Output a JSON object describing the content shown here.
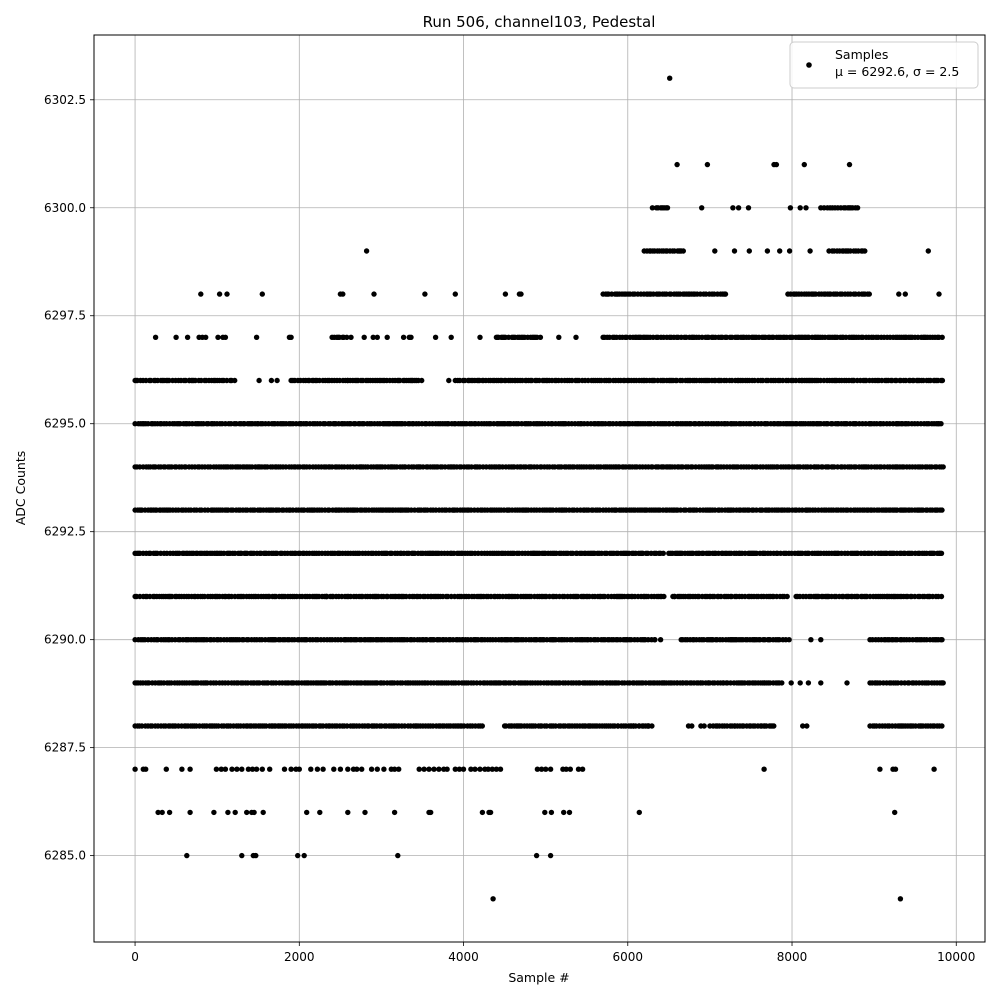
{
  "chart_data": {
    "type": "scatter",
    "title": "Run 506, channel103, Pedestal",
    "xlabel": "Sample #",
    "ylabel": "ADC Counts",
    "xlim": [
      -500,
      10350
    ],
    "ylim": [
      6283.0,
      6304.0
    ],
    "x_ticks": [
      0,
      2000,
      4000,
      6000,
      8000,
      10000
    ],
    "y_ticks": [
      6285.0,
      6287.5,
      6290.0,
      6292.5,
      6295.0,
      6297.5,
      6300.0,
      6302.5
    ],
    "x_tick_labels": [
      "0",
      "2000",
      "4000",
      "6000",
      "8000",
      "10000"
    ],
    "y_tick_labels": [
      "6285.0",
      "6287.5",
      "6290.0",
      "6292.5",
      "6295.0",
      "6297.5",
      "6300.0",
      "6302.5"
    ],
    "grid": true,
    "legend": {
      "placement": "top-right",
      "series_name": "Samples",
      "stats_text": "μ = 6292.6, σ = 2.5"
    },
    "marker_color": "#000000",
    "sample_count_approx": 9850,
    "dense_bands": [
      {
        "y": 6288,
        "ranges": [
          [
            0,
            4250
          ],
          [
            4500,
            6300
          ],
          [
            7000,
            7800
          ],
          [
            8950,
            9850
          ]
        ]
      },
      {
        "y": 6289,
        "ranges": [
          [
            0,
            4400
          ],
          [
            4400,
            6500
          ],
          [
            6500,
            7900
          ],
          [
            8950,
            9850
          ]
        ]
      },
      {
        "y": 6290,
        "ranges": [
          [
            0,
            6350
          ],
          [
            6650,
            8000
          ],
          [
            8950,
            9850
          ]
        ]
      },
      {
        "y": 6291,
        "ranges": [
          [
            0,
            6450
          ],
          [
            6550,
            7950
          ],
          [
            8050,
            9850
          ]
        ]
      },
      {
        "y": 6292,
        "ranges": [
          [
            0,
            6450
          ],
          [
            6500,
            9850
          ]
        ]
      },
      {
        "y": 6293,
        "ranges": [
          [
            0,
            9850
          ]
        ]
      },
      {
        "y": 6294,
        "ranges": [
          [
            0,
            9850
          ]
        ]
      },
      {
        "y": 6295,
        "ranges": [
          [
            0,
            9850
          ]
        ]
      },
      {
        "y": 6296,
        "ranges": [
          [
            0,
            1250
          ],
          [
            1900,
            3500
          ],
          [
            3900,
            9850
          ]
        ]
      },
      {
        "y": 6297,
        "ranges": [
          [
            2400,
            2600
          ],
          [
            4400,
            4950
          ],
          [
            5700,
            9850
          ]
        ]
      },
      {
        "y": 6298,
        "ranges": [
          [
            5700,
            7200
          ],
          [
            7950,
            8950
          ]
        ]
      },
      {
        "y": 6299,
        "ranges": [
          [
            6200,
            6700
          ],
          [
            8450,
            8900
          ]
        ]
      },
      {
        "y": 6300,
        "ranges": [
          [
            6350,
            6500
          ],
          [
            8350,
            8800
          ]
        ]
      }
    ],
    "sparse_points": [
      [
        6510,
        6303
      ],
      [
        6600,
        6301
      ],
      [
        6970,
        6301
      ],
      [
        7780,
        6301
      ],
      [
        7810,
        6301
      ],
      [
        8150,
        6301
      ],
      [
        8700,
        6301
      ],
      [
        6300,
        6300
      ],
      [
        6900,
        6300
      ],
      [
        7280,
        6300
      ],
      [
        7350,
        6300
      ],
      [
        7470,
        6300
      ],
      [
        7980,
        6300
      ],
      [
        8100,
        6300
      ],
      [
        8170,
        6300
      ],
      [
        2820,
        6299
      ],
      [
        7060,
        6299
      ],
      [
        7300,
        6299
      ],
      [
        7480,
        6299
      ],
      [
        7700,
        6299
      ],
      [
        7850,
        6299
      ],
      [
        7970,
        6299
      ],
      [
        8220,
        6299
      ],
      [
        9660,
        6299
      ],
      [
        800,
        6298
      ],
      [
        1030,
        6298
      ],
      [
        1120,
        6298
      ],
      [
        1550,
        6298
      ],
      [
        2500,
        6298
      ],
      [
        2530,
        6298
      ],
      [
        2910,
        6298
      ],
      [
        3530,
        6298
      ],
      [
        3900,
        6298
      ],
      [
        4510,
        6298
      ],
      [
        4680,
        6298
      ],
      [
        4700,
        6298
      ],
      [
        9300,
        6298
      ],
      [
        9380,
        6298
      ],
      [
        9790,
        6298
      ],
      [
        250,
        6297
      ],
      [
        500,
        6297
      ],
      [
        640,
        6297
      ],
      [
        780,
        6297
      ],
      [
        820,
        6297
      ],
      [
        860,
        6297
      ],
      [
        1010,
        6297
      ],
      [
        1070,
        6297
      ],
      [
        1100,
        6297
      ],
      [
        1480,
        6297
      ],
      [
        1880,
        6297
      ],
      [
        1900,
        6297
      ],
      [
        2630,
        6297
      ],
      [
        2790,
        6297
      ],
      [
        2900,
        6297
      ],
      [
        2950,
        6297
      ],
      [
        3070,
        6297
      ],
      [
        3270,
        6297
      ],
      [
        3340,
        6297
      ],
      [
        3360,
        6297
      ],
      [
        3660,
        6297
      ],
      [
        3850,
        6297
      ],
      [
        4200,
        6297
      ],
      [
        5160,
        6297
      ],
      [
        5370,
        6297
      ],
      [
        660,
        6296
      ],
      [
        700,
        6296
      ],
      [
        1510,
        6296
      ],
      [
        1660,
        6296
      ],
      [
        1730,
        6296
      ],
      [
        2590,
        6296
      ],
      [
        3820,
        6296
      ],
      [
        1500,
        6295
      ],
      [
        1690,
        6295
      ],
      [
        1790,
        6295
      ],
      [
        2020,
        6295
      ],
      [
        2330,
        6291
      ],
      [
        6570,
        6291
      ],
      [
        6330,
        6290
      ],
      [
        6400,
        6290
      ],
      [
        8230,
        6290
      ],
      [
        8350,
        6290
      ],
      [
        6440,
        6289
      ],
      [
        6600,
        6289
      ],
      [
        6670,
        6289
      ],
      [
        6890,
        6289
      ],
      [
        6980,
        6289
      ],
      [
        7160,
        6289
      ],
      [
        7660,
        6289
      ],
      [
        7990,
        6289
      ],
      [
        8100,
        6289
      ],
      [
        8200,
        6289
      ],
      [
        8350,
        6289
      ],
      [
        8670,
        6289
      ],
      [
        9830,
        6289
      ],
      [
        5880,
        6288
      ],
      [
        6070,
        6288
      ],
      [
        6140,
        6288
      ],
      [
        6250,
        6288
      ],
      [
        6740,
        6288
      ],
      [
        6780,
        6288
      ],
      [
        6890,
        6288
      ],
      [
        6930,
        6288
      ],
      [
        7090,
        6288
      ],
      [
        7300,
        6288
      ],
      [
        7630,
        6288
      ],
      [
        7670,
        6288
      ],
      [
        8130,
        6288
      ],
      [
        8180,
        6288
      ],
      [
        0,
        6287
      ],
      [
        100,
        6287
      ],
      [
        130,
        6287
      ],
      [
        380,
        6287
      ],
      [
        570,
        6287
      ],
      [
        670,
        6287
      ],
      [
        990,
        6287
      ],
      [
        1050,
        6287
      ],
      [
        1100,
        6287
      ],
      [
        1180,
        6287
      ],
      [
        1240,
        6287
      ],
      [
        1300,
        6287
      ],
      [
        1380,
        6287
      ],
      [
        1430,
        6287
      ],
      [
        1480,
        6287
      ],
      [
        1550,
        6287
      ],
      [
        1640,
        6287
      ],
      [
        1820,
        6287
      ],
      [
        1900,
        6287
      ],
      [
        1960,
        6287
      ],
      [
        2000,
        6287
      ],
      [
        2140,
        6287
      ],
      [
        2220,
        6287
      ],
      [
        2290,
        6287
      ],
      [
        2420,
        6287
      ],
      [
        2500,
        6287
      ],
      [
        2590,
        6287
      ],
      [
        2660,
        6287
      ],
      [
        2700,
        6287
      ],
      [
        2760,
        6287
      ],
      [
        2880,
        6287
      ],
      [
        2950,
        6287
      ],
      [
        3030,
        6287
      ],
      [
        3120,
        6287
      ],
      [
        3160,
        6287
      ],
      [
        3210,
        6287
      ],
      [
        3460,
        6287
      ],
      [
        3520,
        6287
      ],
      [
        3580,
        6287
      ],
      [
        3640,
        6287
      ],
      [
        3700,
        6287
      ],
      [
        3760,
        6287
      ],
      [
        3800,
        6287
      ],
      [
        3900,
        6287
      ],
      [
        3950,
        6287
      ],
      [
        4000,
        6287
      ],
      [
        4090,
        6287
      ],
      [
        4140,
        6287
      ],
      [
        4200,
        6287
      ],
      [
        4260,
        6287
      ],
      [
        4300,
        6287
      ],
      [
        4350,
        6287
      ],
      [
        4400,
        6287
      ],
      [
        4450,
        6287
      ],
      [
        4900,
        6287
      ],
      [
        4950,
        6287
      ],
      [
        5000,
        6287
      ],
      [
        5060,
        6287
      ],
      [
        5210,
        6287
      ],
      [
        5250,
        6287
      ],
      [
        5300,
        6287
      ],
      [
        5400,
        6287
      ],
      [
        5450,
        6287
      ],
      [
        7660,
        6287
      ],
      [
        9070,
        6287
      ],
      [
        9230,
        6287
      ],
      [
        9260,
        6287
      ],
      [
        9730,
        6287
      ],
      [
        280,
        6286
      ],
      [
        330,
        6286
      ],
      [
        420,
        6286
      ],
      [
        670,
        6286
      ],
      [
        960,
        6286
      ],
      [
        1130,
        6286
      ],
      [
        1220,
        6286
      ],
      [
        1360,
        6286
      ],
      [
        1420,
        6286
      ],
      [
        1450,
        6286
      ],
      [
        1560,
        6286
      ],
      [
        2090,
        6286
      ],
      [
        2250,
        6286
      ],
      [
        2590,
        6286
      ],
      [
        2800,
        6286
      ],
      [
        3160,
        6286
      ],
      [
        3580,
        6286
      ],
      [
        3600,
        6286
      ],
      [
        4230,
        6286
      ],
      [
        4310,
        6286
      ],
      [
        4330,
        6286
      ],
      [
        4990,
        6286
      ],
      [
        5070,
        6286
      ],
      [
        5220,
        6286
      ],
      [
        5290,
        6286
      ],
      [
        6140,
        6286
      ],
      [
        9250,
        6286
      ],
      [
        630,
        6285
      ],
      [
        1300,
        6285
      ],
      [
        1440,
        6285
      ],
      [
        1470,
        6285
      ],
      [
        1980,
        6285
      ],
      [
        2060,
        6285
      ],
      [
        3200,
        6285
      ],
      [
        4890,
        6285
      ],
      [
        5060,
        6285
      ],
      [
        4360,
        6284
      ],
      [
        9320,
        6284
      ]
    ]
  }
}
